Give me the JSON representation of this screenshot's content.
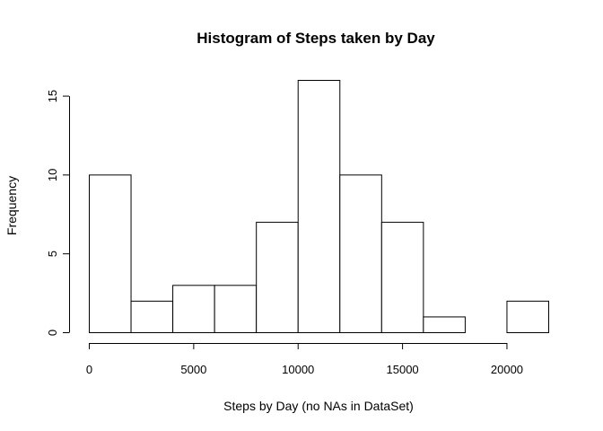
{
  "chart_data": {
    "type": "bar",
    "title": "Histogram of Steps taken by Day",
    "xlabel": "Steps by Day (no NAs in DataSet)",
    "ylabel": "Frequency",
    "bins": [
      {
        "start": 0,
        "end": 2000,
        "count": 10
      },
      {
        "start": 2000,
        "end": 4000,
        "count": 2
      },
      {
        "start": 4000,
        "end": 6000,
        "count": 3
      },
      {
        "start": 6000,
        "end": 8000,
        "count": 3
      },
      {
        "start": 8000,
        "end": 10000,
        "count": 7
      },
      {
        "start": 10000,
        "end": 12000,
        "count": 16
      },
      {
        "start": 12000,
        "end": 14000,
        "count": 10
      },
      {
        "start": 14000,
        "end": 16000,
        "count": 7
      },
      {
        "start": 16000,
        "end": 18000,
        "count": 1
      },
      {
        "start": 18000,
        "end": 20000,
        "count": 0
      },
      {
        "start": 20000,
        "end": 22000,
        "count": 2
      }
    ],
    "xlim": [
      0,
      22000
    ],
    "ylim": [
      0,
      16
    ],
    "x_ticks": [
      0,
      5000,
      10000,
      15000,
      20000
    ],
    "x_tick_labels": [
      "0",
      "5000",
      "10000",
      "15000",
      "20000"
    ],
    "y_ticks": [
      0,
      5,
      10,
      15
    ],
    "y_tick_labels": [
      "0",
      "5",
      "10",
      "15"
    ],
    "grid": false,
    "colors": {
      "bar_fill": "#ffffff",
      "bar_stroke": "#000000"
    }
  }
}
